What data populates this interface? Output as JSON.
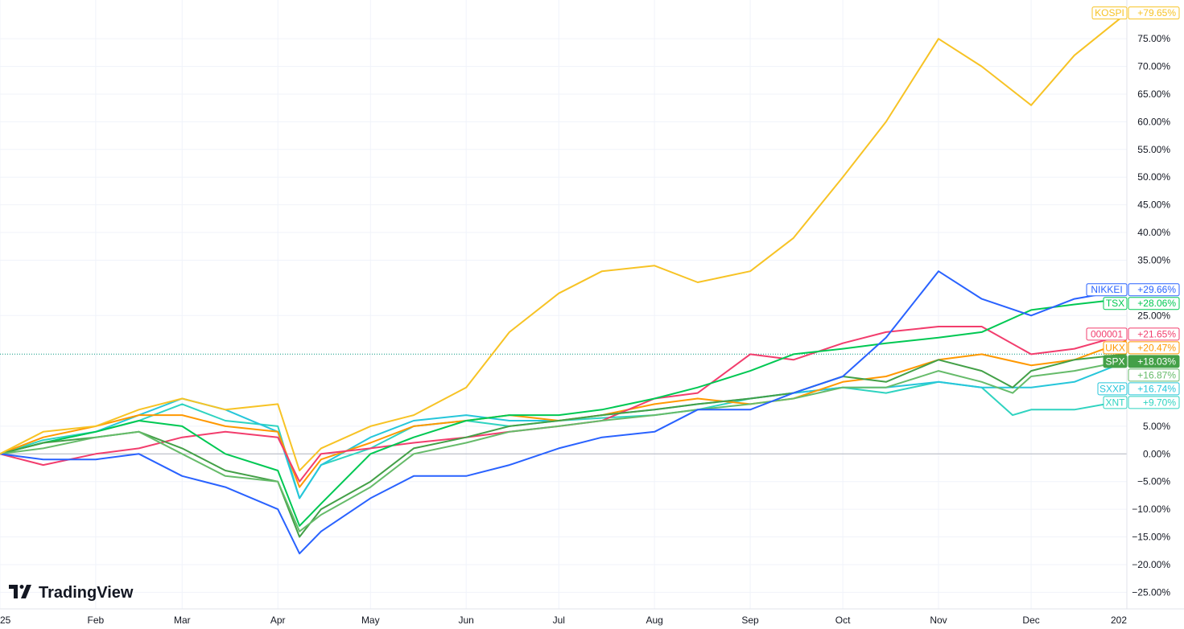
{
  "branding": {
    "name": "TradingView"
  },
  "chart_data": {
    "type": "line",
    "ylim": [
      -28,
      82
    ],
    "x_domain": [
      "2025-01-01",
      "2026-01-01"
    ],
    "y_ticks": [
      {
        "value": 75,
        "label": "75.00%"
      },
      {
        "value": 70,
        "label": "70.00%"
      },
      {
        "value": 65,
        "label": "65.00%"
      },
      {
        "value": 60,
        "label": "60.00%"
      },
      {
        "value": 55,
        "label": "55.00%"
      },
      {
        "value": 50,
        "label": "50.00%"
      },
      {
        "value": 45,
        "label": "45.00%"
      },
      {
        "value": 40,
        "label": "40.00%"
      },
      {
        "value": 35,
        "label": "35.00%"
      },
      {
        "value": 25,
        "label": "25.00%"
      },
      {
        "value": 5,
        "label": "5.00%"
      },
      {
        "value": 0,
        "label": "0.00%"
      },
      {
        "value": -5,
        "label": "−5.00%"
      },
      {
        "value": -10,
        "label": "−10.00%"
      },
      {
        "value": -15,
        "label": "−15.00%"
      },
      {
        "value": -20,
        "label": "−20.00%"
      },
      {
        "value": -25,
        "label": "−25.00%"
      }
    ],
    "x_ticks": [
      {
        "date": "2025-01-01",
        "label": "25"
      },
      {
        "date": "2025-02-01",
        "label": "Feb"
      },
      {
        "date": "2025-03-01",
        "label": "Mar"
      },
      {
        "date": "2025-04-01",
        "label": "Apr"
      },
      {
        "date": "2025-05-01",
        "label": "May"
      },
      {
        "date": "2025-06-01",
        "label": "Jun"
      },
      {
        "date": "2025-07-01",
        "label": "Jul"
      },
      {
        "date": "2025-08-01",
        "label": "Aug"
      },
      {
        "date": "2025-09-01",
        "label": "Sep"
      },
      {
        "date": "2025-10-01",
        "label": "Oct"
      },
      {
        "date": "2025-11-01",
        "label": "Nov"
      },
      {
        "date": "2025-12-01",
        "label": "Dec"
      },
      {
        "date": "2026-01-01",
        "label": "202"
      }
    ],
    "baseline": 0,
    "reference_line": {
      "value": 18.03,
      "color": "#089981"
    },
    "series": [
      {
        "name": "XNT",
        "last_label": "+9.70%",
        "color": "#2fd3c0",
        "highlight": false,
        "points": [
          [
            "2025-01-01",
            0
          ],
          [
            "2025-01-15",
            2.5
          ],
          [
            "2025-02-01",
            4
          ],
          [
            "2025-02-15",
            6
          ],
          [
            "2025-03-01",
            9
          ],
          [
            "2025-03-15",
            6
          ],
          [
            "2025-04-01",
            5
          ],
          [
            "2025-04-08",
            -8
          ],
          [
            "2025-04-15",
            -2
          ],
          [
            "2025-05-01",
            1
          ],
          [
            "2025-05-15",
            5
          ],
          [
            "2025-06-01",
            6
          ],
          [
            "2025-06-15",
            5
          ],
          [
            "2025-07-01",
            6
          ],
          [
            "2025-07-15",
            6.5
          ],
          [
            "2025-08-01",
            7
          ],
          [
            "2025-08-15",
            8
          ],
          [
            "2025-09-01",
            10
          ],
          [
            "2025-09-15",
            11
          ],
          [
            "2025-10-01",
            12
          ],
          [
            "2025-10-15",
            11
          ],
          [
            "2025-11-01",
            13
          ],
          [
            "2025-11-15",
            12
          ],
          [
            "2025-11-25",
            7
          ],
          [
            "2025-12-01",
            8
          ],
          [
            "2025-12-15",
            8
          ],
          [
            "2026-01-01",
            9.7
          ]
        ]
      },
      {
        "name": "SXXP",
        "last_label": "+16.74%",
        "color": "#26c6da",
        "highlight": false,
        "points": [
          [
            "2025-01-01",
            0
          ],
          [
            "2025-01-15",
            2
          ],
          [
            "2025-02-01",
            4
          ],
          [
            "2025-02-15",
            7
          ],
          [
            "2025-03-01",
            10
          ],
          [
            "2025-03-15",
            8
          ],
          [
            "2025-04-01",
            4
          ],
          [
            "2025-04-08",
            -8
          ],
          [
            "2025-04-15",
            -2
          ],
          [
            "2025-05-01",
            3
          ],
          [
            "2025-05-15",
            6
          ],
          [
            "2025-06-01",
            7
          ],
          [
            "2025-06-15",
            6
          ],
          [
            "2025-07-01",
            6
          ],
          [
            "2025-07-15",
            7
          ],
          [
            "2025-08-01",
            8
          ],
          [
            "2025-08-15",
            9
          ],
          [
            "2025-09-01",
            10
          ],
          [
            "2025-09-15",
            11
          ],
          [
            "2025-10-01",
            12
          ],
          [
            "2025-10-15",
            12
          ],
          [
            "2025-11-01",
            13
          ],
          [
            "2025-11-15",
            12
          ],
          [
            "2025-12-01",
            12
          ],
          [
            "2025-12-15",
            13
          ],
          [
            "2026-01-01",
            16.74
          ]
        ]
      },
      {
        "name": "UKX",
        "last_label": "+20.47%",
        "color": "#ff9800",
        "highlight": false,
        "points": [
          [
            "2025-01-01",
            0
          ],
          [
            "2025-01-15",
            3
          ],
          [
            "2025-02-01",
            5
          ],
          [
            "2025-02-15",
            7
          ],
          [
            "2025-03-01",
            7
          ],
          [
            "2025-03-15",
            5
          ],
          [
            "2025-04-01",
            4
          ],
          [
            "2025-04-08",
            -6
          ],
          [
            "2025-04-15",
            -1
          ],
          [
            "2025-05-01",
            2
          ],
          [
            "2025-05-15",
            5
          ],
          [
            "2025-06-01",
            6
          ],
          [
            "2025-06-15",
            7
          ],
          [
            "2025-07-01",
            6
          ],
          [
            "2025-07-15",
            7
          ],
          [
            "2025-08-01",
            9
          ],
          [
            "2025-08-15",
            10
          ],
          [
            "2025-09-01",
            9
          ],
          [
            "2025-09-15",
            10
          ],
          [
            "2025-10-01",
            13
          ],
          [
            "2025-10-15",
            14
          ],
          [
            "2025-11-01",
            17
          ],
          [
            "2025-11-15",
            18
          ],
          [
            "2025-12-01",
            16
          ],
          [
            "2025-12-15",
            17
          ],
          [
            "2026-01-01",
            20.47
          ]
        ]
      },
      {
        "name": "000001",
        "last_label": "+21.65%",
        "color": "#f23d6d",
        "highlight": false,
        "points": [
          [
            "2025-01-01",
            0
          ],
          [
            "2025-01-15",
            -2
          ],
          [
            "2025-02-01",
            0
          ],
          [
            "2025-02-15",
            1
          ],
          [
            "2025-03-01",
            3
          ],
          [
            "2025-03-15",
            4
          ],
          [
            "2025-04-01",
            3
          ],
          [
            "2025-04-08",
            -5
          ],
          [
            "2025-04-15",
            0
          ],
          [
            "2025-05-01",
            1
          ],
          [
            "2025-05-15",
            2
          ],
          [
            "2025-06-01",
            3
          ],
          [
            "2025-06-15",
            4
          ],
          [
            "2025-07-01",
            5
          ],
          [
            "2025-07-15",
            6
          ],
          [
            "2025-08-01",
            10
          ],
          [
            "2025-08-15",
            11
          ],
          [
            "2025-09-01",
            18
          ],
          [
            "2025-09-15",
            17
          ],
          [
            "2025-10-01",
            20
          ],
          [
            "2025-10-15",
            22
          ],
          [
            "2025-11-01",
            23
          ],
          [
            "2025-11-15",
            23
          ],
          [
            "2025-12-01",
            18
          ],
          [
            "2025-12-15",
            19
          ],
          [
            "2026-01-01",
            21.65
          ]
        ]
      },
      {
        "name": "TSX",
        "last_label": "+28.06%",
        "color": "#00c853",
        "highlight": false,
        "points": [
          [
            "2025-01-01",
            0
          ],
          [
            "2025-01-15",
            2
          ],
          [
            "2025-02-01",
            4
          ],
          [
            "2025-02-15",
            6
          ],
          [
            "2025-03-01",
            5
          ],
          [
            "2025-03-15",
            0
          ],
          [
            "2025-04-01",
            -3
          ],
          [
            "2025-04-08",
            -13
          ],
          [
            "2025-04-15",
            -9
          ],
          [
            "2025-05-01",
            0
          ],
          [
            "2025-05-15",
            3
          ],
          [
            "2025-06-01",
            6
          ],
          [
            "2025-06-15",
            7
          ],
          [
            "2025-07-01",
            7
          ],
          [
            "2025-07-15",
            8
          ],
          [
            "2025-08-01",
            10
          ],
          [
            "2025-08-15",
            12
          ],
          [
            "2025-09-01",
            15
          ],
          [
            "2025-09-15",
            18
          ],
          [
            "2025-10-01",
            19
          ],
          [
            "2025-10-15",
            20
          ],
          [
            "2025-11-01",
            21
          ],
          [
            "2025-11-15",
            22
          ],
          [
            "2025-12-01",
            26
          ],
          [
            "2025-12-15",
            27
          ],
          [
            "2026-01-01",
            28.06
          ]
        ]
      },
      {
        "name": "SPX",
        "last_label": "+18.03%",
        "color": "#43a047",
        "highlight": true,
        "points": [
          [
            "2025-01-01",
            0
          ],
          [
            "2025-01-15",
            2
          ],
          [
            "2025-02-01",
            3
          ],
          [
            "2025-02-15",
            4
          ],
          [
            "2025-03-01",
            1
          ],
          [
            "2025-03-15",
            -3
          ],
          [
            "2025-04-01",
            -5
          ],
          [
            "2025-04-08",
            -15
          ],
          [
            "2025-04-15",
            -10
          ],
          [
            "2025-05-01",
            -5
          ],
          [
            "2025-05-15",
            1
          ],
          [
            "2025-06-01",
            3
          ],
          [
            "2025-06-15",
            5
          ],
          [
            "2025-07-01",
            6
          ],
          [
            "2025-07-15",
            7
          ],
          [
            "2025-08-01",
            8
          ],
          [
            "2025-08-15",
            9
          ],
          [
            "2025-09-01",
            10
          ],
          [
            "2025-09-15",
            11
          ],
          [
            "2025-10-01",
            14
          ],
          [
            "2025-10-15",
            13
          ],
          [
            "2025-11-01",
            17
          ],
          [
            "2025-11-15",
            15
          ],
          [
            "2025-11-25",
            12
          ],
          [
            "2025-12-01",
            15
          ],
          [
            "2025-12-15",
            17
          ],
          [
            "2026-01-01",
            18.03
          ]
        ]
      },
      {
        "name": "",
        "last_label": "+16.87%",
        "color": "#66bb6a",
        "highlight": false,
        "points": [
          [
            "2025-01-01",
            0
          ],
          [
            "2025-01-15",
            1
          ],
          [
            "2025-02-01",
            3
          ],
          [
            "2025-02-15",
            4
          ],
          [
            "2025-03-01",
            0
          ],
          [
            "2025-03-15",
            -4
          ],
          [
            "2025-04-01",
            -5
          ],
          [
            "2025-04-08",
            -14
          ],
          [
            "2025-04-15",
            -11
          ],
          [
            "2025-05-01",
            -6
          ],
          [
            "2025-05-15",
            0
          ],
          [
            "2025-06-01",
            2
          ],
          [
            "2025-06-15",
            4
          ],
          [
            "2025-07-01",
            5
          ],
          [
            "2025-07-15",
            6
          ],
          [
            "2025-08-01",
            7
          ],
          [
            "2025-08-15",
            8
          ],
          [
            "2025-09-01",
            9
          ],
          [
            "2025-09-15",
            10
          ],
          [
            "2025-10-01",
            12
          ],
          [
            "2025-10-15",
            12
          ],
          [
            "2025-11-01",
            15
          ],
          [
            "2025-11-15",
            13
          ],
          [
            "2025-11-25",
            11
          ],
          [
            "2025-12-01",
            14
          ],
          [
            "2025-12-15",
            15
          ],
          [
            "2026-01-01",
            16.87
          ]
        ]
      },
      {
        "name": "NIKKEI",
        "last_label": "+29.66%",
        "color": "#2962ff",
        "highlight": false,
        "points": [
          [
            "2025-01-01",
            0
          ],
          [
            "2025-01-15",
            -1
          ],
          [
            "2025-02-01",
            -1
          ],
          [
            "2025-02-15",
            0
          ],
          [
            "2025-03-01",
            -4
          ],
          [
            "2025-03-15",
            -6
          ],
          [
            "2025-04-01",
            -10
          ],
          [
            "2025-04-08",
            -18
          ],
          [
            "2025-04-15",
            -14
          ],
          [
            "2025-05-01",
            -8
          ],
          [
            "2025-05-15",
            -4
          ],
          [
            "2025-06-01",
            -4
          ],
          [
            "2025-06-15",
            -2
          ],
          [
            "2025-07-01",
            1
          ],
          [
            "2025-07-15",
            3
          ],
          [
            "2025-08-01",
            4
          ],
          [
            "2025-08-15",
            8
          ],
          [
            "2025-09-01",
            8
          ],
          [
            "2025-09-15",
            11
          ],
          [
            "2025-10-01",
            14
          ],
          [
            "2025-10-15",
            21
          ],
          [
            "2025-11-01",
            33
          ],
          [
            "2025-11-15",
            28
          ],
          [
            "2025-12-01",
            25
          ],
          [
            "2025-12-15",
            28
          ],
          [
            "2026-01-01",
            29.66
          ]
        ]
      },
      {
        "name": "KOSPI",
        "last_label": "+79.65%",
        "color": "#f7c325",
        "highlight": false,
        "points": [
          [
            "2025-01-01",
            0
          ],
          [
            "2025-01-15",
            4
          ],
          [
            "2025-02-01",
            5
          ],
          [
            "2025-02-15",
            8
          ],
          [
            "2025-03-01",
            10
          ],
          [
            "2025-03-15",
            8
          ],
          [
            "2025-04-01",
            9
          ],
          [
            "2025-04-08",
            -3
          ],
          [
            "2025-04-15",
            1
          ],
          [
            "2025-05-01",
            5
          ],
          [
            "2025-05-15",
            7
          ],
          [
            "2025-06-01",
            12
          ],
          [
            "2025-06-15",
            22
          ],
          [
            "2025-07-01",
            29
          ],
          [
            "2025-07-15",
            33
          ],
          [
            "2025-08-01",
            34
          ],
          [
            "2025-08-15",
            31
          ],
          [
            "2025-09-01",
            33
          ],
          [
            "2025-09-15",
            39
          ],
          [
            "2025-10-01",
            50
          ],
          [
            "2025-10-15",
            60
          ],
          [
            "2025-11-01",
            75
          ],
          [
            "2025-11-15",
            70
          ],
          [
            "2025-12-01",
            63
          ],
          [
            "2025-12-15",
            72
          ],
          [
            "2026-01-01",
            79.65
          ]
        ]
      }
    ]
  }
}
